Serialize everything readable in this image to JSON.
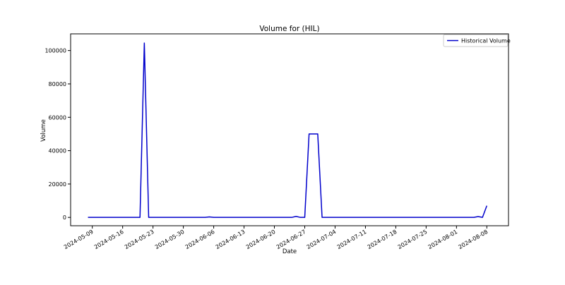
{
  "chart_data": {
    "type": "line",
    "title": "Volume for  (HIL)",
    "xlabel": "Date",
    "ylabel": "Volume",
    "x_tick_labels": [
      "2024-05-09",
      "2024-05-16",
      "2024-05-23",
      "2024-05-30",
      "2024-06-06",
      "2024-06-13",
      "2024-06-20",
      "2024-06-27",
      "2024-07-04",
      "2024-07-11",
      "2024-07-18",
      "2024-07-25",
      "2024-08-01",
      "2024-08-08"
    ],
    "y_ticks": [
      0,
      20000,
      40000,
      60000,
      80000,
      100000
    ],
    "y_tick_labels": [
      "0",
      "20000",
      "40000",
      "60000",
      "80000",
      "100000"
    ],
    "xlim": [
      "2024-05-04",
      "2024-08-13"
    ],
    "ylim": [
      -5000,
      110000
    ],
    "grid": false,
    "legend": {
      "position": "top-right"
    },
    "series": [
      {
        "name": "Historical Volume",
        "color": "#0000cc",
        "points": [
          {
            "x": "2024-05-08",
            "y": 0
          },
          {
            "x": "2024-05-20",
            "y": 0
          },
          {
            "x": "2024-05-21",
            "y": 104500
          },
          {
            "x": "2024-05-22",
            "y": 0
          },
          {
            "x": "2024-06-04",
            "y": 0
          },
          {
            "x": "2024-06-05",
            "y": 300
          },
          {
            "x": "2024-06-06",
            "y": 0
          },
          {
            "x": "2024-06-24",
            "y": 0
          },
          {
            "x": "2024-06-25",
            "y": 600
          },
          {
            "x": "2024-06-26",
            "y": 0
          },
          {
            "x": "2024-06-27",
            "y": 0
          },
          {
            "x": "2024-06-28",
            "y": 50000
          },
          {
            "x": "2024-06-30",
            "y": 50000
          },
          {
            "x": "2024-07-01",
            "y": 0
          },
          {
            "x": "2024-08-05",
            "y": 0
          },
          {
            "x": "2024-08-06",
            "y": 500
          },
          {
            "x": "2024-08-07",
            "y": 0
          },
          {
            "x": "2024-08-08",
            "y": 7000
          }
        ]
      }
    ]
  }
}
